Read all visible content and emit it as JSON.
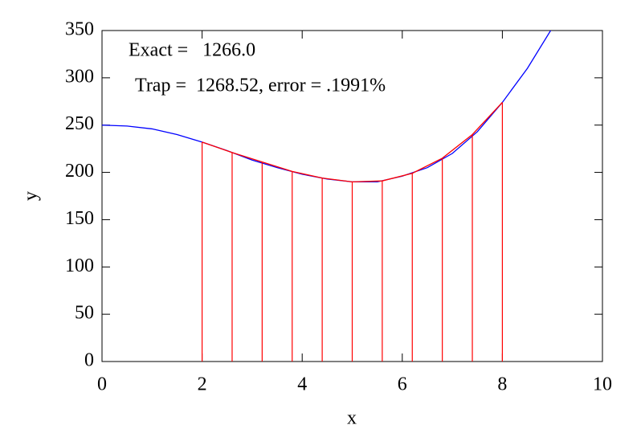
{
  "chart_data": {
    "type": "line",
    "xlabel": "x",
    "ylabel": "y",
    "annotations": [
      {
        "text": "Exact =   1266.0",
        "color": "#0000ff"
      },
      {
        "text": "Trap =  1268.52, error = .1991%",
        "color": "#ff0000"
      }
    ],
    "series": [
      {
        "color": "#0000ff",
        "x": [
          0,
          0.5,
          1,
          1.5,
          2,
          2.5,
          3,
          3.5,
          4,
          4.5,
          5,
          5.5,
          6,
          6.5,
          7,
          7.5,
          8,
          8.5,
          9
        ],
        "values": [
          250,
          249,
          246,
          240,
          232,
          223,
          213,
          205,
          198,
          193,
          190,
          190,
          196,
          205,
          220,
          243,
          274,
          310,
          353
        ]
      },
      {
        "color": "#ff0000",
        "drop_lines": true,
        "x": [
          2,
          2.6,
          3.2,
          3.8,
          4.4,
          5,
          5.6,
          6.2,
          6.8,
          7.4,
          8
        ],
        "values": [
          232,
          221,
          211,
          201,
          194,
          190,
          191,
          199,
          215,
          240,
          274
        ]
      }
    ],
    "xlim": [
      0,
      10
    ],
    "xticks": [
      0,
      2,
      4,
      6,
      8,
      10
    ],
    "ylim": [
      0,
      350
    ],
    "yticks": [
      0,
      50,
      100,
      150,
      200,
      250,
      300,
      350
    ]
  }
}
